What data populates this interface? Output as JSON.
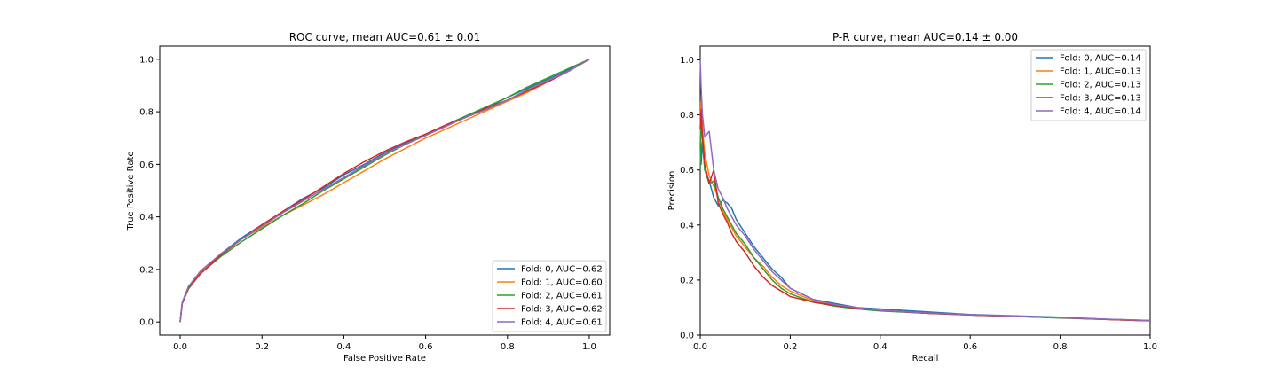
{
  "chart_data": [
    {
      "type": "line",
      "title": "ROC curve, mean AUC=0.61 ± 0.01",
      "xlabel": "False Positive Rate",
      "ylabel": "True Positive Rate",
      "xlim": [
        -0.05,
        1.05
      ],
      "ylim": [
        -0.05,
        1.05
      ],
      "xticks": [
        0.0,
        0.2,
        0.4,
        0.6,
        0.8,
        1.0
      ],
      "yticks": [
        0.0,
        0.2,
        0.4,
        0.6,
        0.8,
        1.0
      ],
      "tick_labels_x": [
        "0.0",
        "0.2",
        "0.4",
        "0.6",
        "0.8",
        "1.0"
      ],
      "tick_labels_y": [
        "0.0",
        "0.2",
        "0.4",
        "0.6",
        "0.8",
        "1.0"
      ],
      "legend_position": "lower-right",
      "grid": false,
      "series": [
        {
          "name": "Fold: 0, AUC=0.62",
          "color": "#1f77b4",
          "x": [
            0,
            0.005,
            0.02,
            0.05,
            0.1,
            0.15,
            0.2,
            0.25,
            0.3,
            0.35,
            0.4,
            0.45,
            0.5,
            0.55,
            0.6,
            0.65,
            0.7,
            0.75,
            0.8,
            0.85,
            0.9,
            0.95,
            1.0
          ],
          "y": [
            0,
            0.07,
            0.13,
            0.19,
            0.26,
            0.32,
            0.37,
            0.42,
            0.47,
            0.51,
            0.56,
            0.6,
            0.645,
            0.68,
            0.715,
            0.75,
            0.785,
            0.815,
            0.855,
            0.89,
            0.925,
            0.96,
            1.0
          ]
        },
        {
          "name": "Fold: 1, AUC=0.60",
          "color": "#ff7f0e",
          "x": [
            0,
            0.005,
            0.02,
            0.05,
            0.1,
            0.15,
            0.2,
            0.25,
            0.3,
            0.35,
            0.4,
            0.45,
            0.5,
            0.55,
            0.6,
            0.65,
            0.7,
            0.75,
            0.8,
            0.85,
            0.9,
            0.95,
            1.0
          ],
          "y": [
            0,
            0.07,
            0.13,
            0.19,
            0.255,
            0.315,
            0.36,
            0.405,
            0.445,
            0.485,
            0.53,
            0.575,
            0.62,
            0.66,
            0.7,
            0.735,
            0.77,
            0.805,
            0.84,
            0.875,
            0.915,
            0.955,
            1.0
          ]
        },
        {
          "name": "Fold: 2, AUC=0.61",
          "color": "#2ca02c",
          "x": [
            0,
            0.005,
            0.02,
            0.05,
            0.1,
            0.15,
            0.2,
            0.25,
            0.3,
            0.35,
            0.4,
            0.45,
            0.5,
            0.55,
            0.6,
            0.65,
            0.7,
            0.75,
            0.8,
            0.85,
            0.9,
            0.95,
            1.0
          ],
          "y": [
            0,
            0.07,
            0.125,
            0.185,
            0.25,
            0.305,
            0.355,
            0.405,
            0.45,
            0.5,
            0.545,
            0.59,
            0.635,
            0.675,
            0.715,
            0.75,
            0.785,
            0.82,
            0.855,
            0.895,
            0.93,
            0.965,
            1.0
          ]
        },
        {
          "name": "Fold: 3, AUC=0.62",
          "color": "#d62728",
          "x": [
            0,
            0.005,
            0.02,
            0.05,
            0.1,
            0.15,
            0.2,
            0.25,
            0.3,
            0.35,
            0.4,
            0.45,
            0.5,
            0.55,
            0.6,
            0.65,
            0.7,
            0.75,
            0.8,
            0.85,
            0.9,
            0.95,
            1.0
          ],
          "y": [
            0,
            0.07,
            0.13,
            0.185,
            0.255,
            0.315,
            0.37,
            0.42,
            0.465,
            0.515,
            0.565,
            0.61,
            0.65,
            0.685,
            0.715,
            0.75,
            0.78,
            0.815,
            0.845,
            0.88,
            0.915,
            0.955,
            1.0
          ]
        },
        {
          "name": "Fold: 4, AUC=0.61",
          "color": "#9467bd",
          "x": [
            0,
            0.005,
            0.02,
            0.05,
            0.1,
            0.15,
            0.2,
            0.25,
            0.3,
            0.35,
            0.4,
            0.45,
            0.5,
            0.55,
            0.6,
            0.65,
            0.7,
            0.75,
            0.8,
            0.85,
            0.9,
            0.95,
            1.0
          ],
          "y": [
            0,
            0.075,
            0.135,
            0.195,
            0.26,
            0.315,
            0.365,
            0.415,
            0.46,
            0.505,
            0.55,
            0.595,
            0.64,
            0.675,
            0.71,
            0.745,
            0.78,
            0.81,
            0.845,
            0.885,
            0.92,
            0.955,
            1.0
          ]
        }
      ]
    },
    {
      "type": "line",
      "title": "P-R curve, mean AUC=0.14 ± 0.00",
      "xlabel": "Recall",
      "ylabel": "Precision",
      "xlim": [
        0.0,
        1.0
      ],
      "ylim": [
        0.0,
        1.05
      ],
      "xticks": [
        0.0,
        0.2,
        0.4,
        0.6,
        0.8,
        1.0
      ],
      "yticks": [
        0.0,
        0.2,
        0.4,
        0.6,
        0.8,
        1.0
      ],
      "tick_labels_x": [
        "0.0",
        "0.2",
        "0.4",
        "0.6",
        "0.8",
        "1.0"
      ],
      "tick_labels_y": [
        "0.0",
        "0.2",
        "0.4",
        "0.6",
        "0.8",
        "1.0"
      ],
      "legend_position": "upper-right",
      "grid": false,
      "series": [
        {
          "name": "Fold: 0, AUC=0.14",
          "color": "#1f77b4",
          "x": [
            0,
            0.002,
            0.005,
            0.01,
            0.02,
            0.03,
            0.04,
            0.05,
            0.06,
            0.07,
            0.08,
            0.1,
            0.12,
            0.14,
            0.16,
            0.18,
            0.2,
            0.25,
            0.3,
            0.35,
            0.4,
            0.5,
            0.6,
            0.7,
            0.8,
            0.9,
            1.0
          ],
          "y": [
            0.85,
            0.62,
            0.7,
            0.6,
            0.56,
            0.5,
            0.47,
            0.49,
            0.48,
            0.46,
            0.42,
            0.37,
            0.32,
            0.28,
            0.24,
            0.21,
            0.17,
            0.13,
            0.115,
            0.1,
            0.095,
            0.085,
            0.075,
            0.07,
            0.065,
            0.058,
            0.053
          ]
        },
        {
          "name": "Fold: 1, AUC=0.13",
          "color": "#ff7f0e",
          "x": [
            0,
            0.002,
            0.005,
            0.01,
            0.02,
            0.03,
            0.04,
            0.05,
            0.06,
            0.07,
            0.08,
            0.1,
            0.12,
            0.14,
            0.16,
            0.18,
            0.2,
            0.25,
            0.3,
            0.35,
            0.4,
            0.5,
            0.6,
            0.7,
            0.8,
            0.9,
            1.0
          ],
          "y": [
            0.7,
            0.85,
            0.75,
            0.66,
            0.58,
            0.54,
            0.5,
            0.45,
            0.42,
            0.39,
            0.36,
            0.32,
            0.28,
            0.25,
            0.21,
            0.18,
            0.16,
            0.125,
            0.11,
            0.095,
            0.09,
            0.08,
            0.073,
            0.068,
            0.063,
            0.057,
            0.052
          ]
        },
        {
          "name": "Fold: 2, AUC=0.13",
          "color": "#2ca02c",
          "x": [
            0,
            0.002,
            0.005,
            0.01,
            0.02,
            0.03,
            0.04,
            0.05,
            0.06,
            0.07,
            0.08,
            0.1,
            0.12,
            0.14,
            0.16,
            0.18,
            0.2,
            0.25,
            0.3,
            0.35,
            0.4,
            0.5,
            0.6,
            0.7,
            0.8,
            0.9,
            1.0
          ],
          "y": [
            0.6,
            0.78,
            0.72,
            0.6,
            0.55,
            0.56,
            0.5,
            0.46,
            0.43,
            0.4,
            0.37,
            0.33,
            0.28,
            0.24,
            0.2,
            0.17,
            0.15,
            0.12,
            0.105,
            0.095,
            0.088,
            0.08,
            0.073,
            0.068,
            0.062,
            0.057,
            0.052
          ]
        },
        {
          "name": "Fold: 3, AUC=0.13",
          "color": "#d62728",
          "x": [
            0,
            0.002,
            0.005,
            0.01,
            0.02,
            0.03,
            0.04,
            0.05,
            0.06,
            0.07,
            0.08,
            0.1,
            0.12,
            0.14,
            0.16,
            0.18,
            0.2,
            0.25,
            0.3,
            0.35,
            0.4,
            0.5,
            0.6,
            0.7,
            0.8,
            0.9,
            1.0
          ],
          "y": [
            0.75,
            0.82,
            0.72,
            0.62,
            0.55,
            0.6,
            0.48,
            0.44,
            0.41,
            0.37,
            0.34,
            0.3,
            0.25,
            0.21,
            0.18,
            0.16,
            0.14,
            0.12,
            0.108,
            0.097,
            0.09,
            0.08,
            0.073,
            0.068,
            0.063,
            0.057,
            0.052
          ]
        },
        {
          "name": "Fold: 4, AUC=0.14",
          "color": "#9467bd",
          "x": [
            0,
            0.002,
            0.005,
            0.01,
            0.02,
            0.03,
            0.04,
            0.05,
            0.06,
            0.07,
            0.08,
            0.1,
            0.12,
            0.14,
            0.16,
            0.18,
            0.2,
            0.25,
            0.3,
            0.35,
            0.4,
            0.5,
            0.6,
            0.7,
            0.8,
            0.9,
            1.0
          ],
          "y": [
            1.0,
            0.9,
            0.8,
            0.72,
            0.74,
            0.6,
            0.53,
            0.5,
            0.46,
            0.43,
            0.4,
            0.36,
            0.31,
            0.27,
            0.23,
            0.2,
            0.17,
            0.13,
            0.11,
            0.1,
            0.09,
            0.081,
            0.074,
            0.069,
            0.063,
            0.058,
            0.053
          ]
        }
      ]
    }
  ]
}
